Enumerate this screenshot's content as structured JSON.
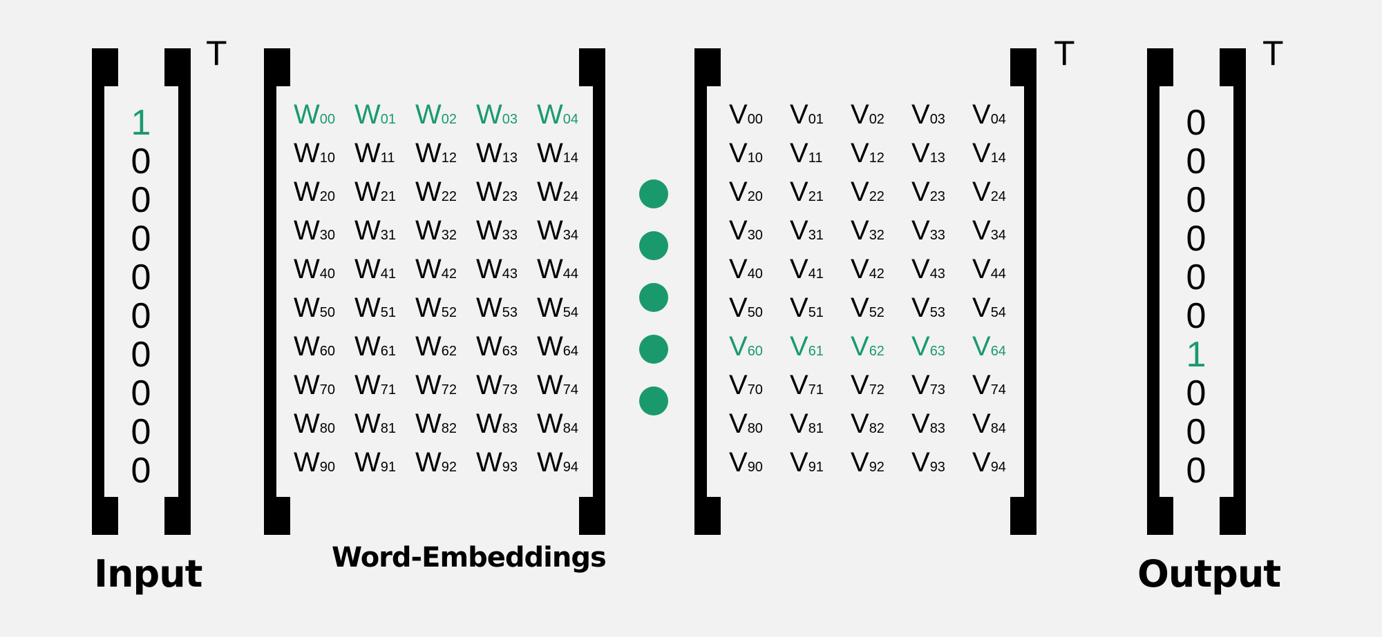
{
  "transpose_symbol": "T",
  "input": {
    "label": "Input",
    "values": [
      "1",
      "0",
      "0",
      "0",
      "0",
      "0",
      "0",
      "0",
      "0",
      "0"
    ],
    "highlight_index": 0
  },
  "embedding": {
    "label": "Word-Embeddings",
    "symbol": "W",
    "highlight_row": 0,
    "rows": [
      [
        "00",
        "01",
        "02",
        "03",
        "04"
      ],
      [
        "10",
        "11",
        "12",
        "13",
        "14"
      ],
      [
        "20",
        "21",
        "22",
        "23",
        "24"
      ],
      [
        "30",
        "31",
        "32",
        "33",
        "34"
      ],
      [
        "40",
        "41",
        "42",
        "43",
        "44"
      ],
      [
        "50",
        "51",
        "52",
        "53",
        "54"
      ],
      [
        "60",
        "61",
        "62",
        "63",
        "64"
      ],
      [
        "70",
        "71",
        "72",
        "73",
        "74"
      ],
      [
        "80",
        "81",
        "82",
        "83",
        "84"
      ],
      [
        "90",
        "91",
        "92",
        "93",
        "94"
      ]
    ]
  },
  "context": {
    "symbol": "V",
    "highlight_row": 6,
    "rows": [
      [
        "00",
        "01",
        "02",
        "03",
        "04"
      ],
      [
        "10",
        "11",
        "12",
        "13",
        "14"
      ],
      [
        "20",
        "21",
        "22",
        "23",
        "24"
      ],
      [
        "30",
        "31",
        "32",
        "33",
        "34"
      ],
      [
        "40",
        "41",
        "42",
        "43",
        "44"
      ],
      [
        "50",
        "51",
        "52",
        "53",
        "54"
      ],
      [
        "60",
        "61",
        "62",
        "63",
        "64"
      ],
      [
        "70",
        "71",
        "72",
        "73",
        "74"
      ],
      [
        "80",
        "81",
        "82",
        "83",
        "84"
      ],
      [
        "90",
        "91",
        "92",
        "93",
        "94"
      ]
    ]
  },
  "output": {
    "label": "Output",
    "values": [
      "0",
      "0",
      "0",
      "0",
      "0",
      "0",
      "1",
      "0",
      "0",
      "0"
    ],
    "highlight_index": 6
  },
  "colors": {
    "highlight": "#1a9a6c",
    "ink": "#000000",
    "background": "#f2f2f2"
  },
  "operator": {
    "name": "dot-product",
    "dot_count": 5
  }
}
